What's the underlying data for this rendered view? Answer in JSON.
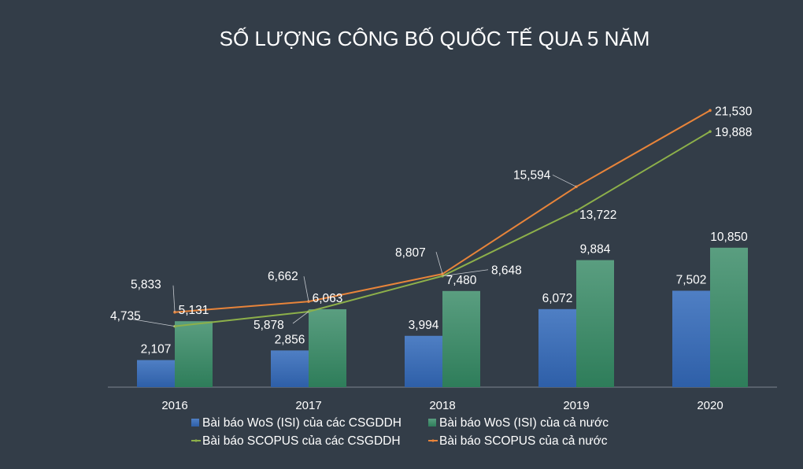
{
  "chart_data": {
    "type": "bar",
    "title": "SỐ LƯỢNG CÔNG BỐ QUỐC TẾ QUA 5 NĂM",
    "xlabel": "",
    "ylabel": "",
    "categories": [
      "2016",
      "2017",
      "2018",
      "2019",
      "2020"
    ],
    "ylim": [
      0,
      24000
    ],
    "grid": false,
    "legend_position": "bottom",
    "bar_series": [
      {
        "name": "Bài báo WoS (ISI) của các CSGDDH",
        "values": [
          2107,
          2856,
          3994,
          6072,
          7502
        ],
        "labels": [
          "2,107",
          "2,856",
          "3,994",
          "6,072",
          "7,502"
        ],
        "color_top": "#4f7fc4",
        "color_bottom": "#2e5fa8"
      },
      {
        "name": "Bài báo WoS (ISI) của cả nước",
        "values": [
          5131,
          6063,
          7480,
          9884,
          10850
        ],
        "labels": [
          "5,131",
          "6,063",
          "7,480",
          "9,884",
          "10,850"
        ],
        "color_top": "#5a9e80",
        "color_bottom": "#2e7d5a"
      }
    ],
    "line_series": [
      {
        "name": "Bài báo SCOPUS của các CSGDDH",
        "type": "line",
        "values": [
          4735,
          5878,
          8648,
          13722,
          19888
        ],
        "labels": [
          "4,735",
          "5,878",
          "8,648",
          "13,722",
          "19,888"
        ],
        "color": "#8db04a"
      },
      {
        "name": "Bài báo SCOPUS của cả nước",
        "type": "line",
        "values": [
          5833,
          6662,
          8807,
          15594,
          21530
        ],
        "labels": [
          "5,833",
          "6,662",
          "8,807",
          "15,594",
          "21,530"
        ],
        "color": "#e8843a"
      }
    ]
  }
}
